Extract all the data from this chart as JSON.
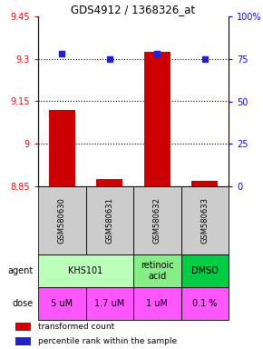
{
  "title": "GDS4912 / 1368326_at",
  "samples": [
    "GSM580630",
    "GSM580631",
    "GSM580632",
    "GSM580633"
  ],
  "bar_values": [
    9.12,
    8.875,
    9.325,
    8.87
  ],
  "percentile_values": [
    78,
    75,
    78,
    75
  ],
  "ylim_left": [
    8.85,
    9.45
  ],
  "ylim_right": [
    0,
    100
  ],
  "yticks_left": [
    8.85,
    9.0,
    9.15,
    9.3,
    9.45
  ],
  "yticks_right": [
    0,
    25,
    50,
    75,
    100
  ],
  "ytick_labels_left": [
    "8.85",
    "9",
    "9.15",
    "9.3",
    "9.45"
  ],
  "ytick_labels_right": [
    "0",
    "25",
    "50",
    "75",
    "100%"
  ],
  "hlines": [
    9.0,
    9.15,
    9.3
  ],
  "bar_color": "#cc0000",
  "dot_color": "#2222cc",
  "agent_spans": [
    [
      0,
      2,
      "KHS101",
      "#bbffbb"
    ],
    [
      2,
      3,
      "retinoic\nacid",
      "#88ee88"
    ],
    [
      3,
      4,
      "DMSO",
      "#00cc44"
    ]
  ],
  "dose_labels": [
    "5 uM",
    "1.7 uM",
    "1 uM",
    "0.1 %"
  ],
  "dose_color": "#ff55ff",
  "sample_bg_color": "#cccccc",
  "legend_bar_color": "#cc0000",
  "legend_dot_color": "#2222cc",
  "border_color": "#000000"
}
